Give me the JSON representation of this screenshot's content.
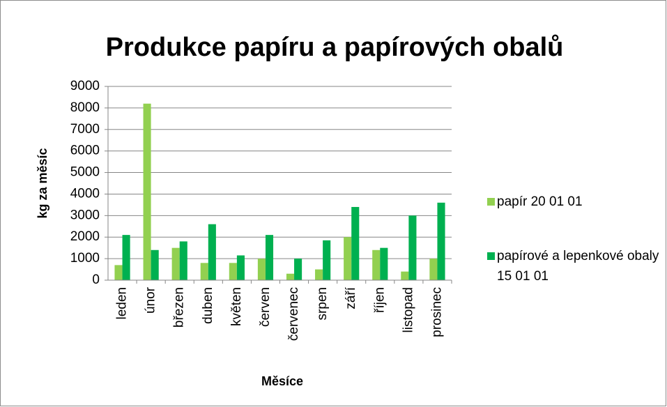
{
  "chart_data": {
    "type": "bar",
    "title": "Produkce papíru a papírových obalů",
    "y_label": "kg za měsíc",
    "x_label": "Měsíce",
    "categories": [
      "leden",
      "únor",
      "březen",
      "duben",
      "květen",
      "červen",
      "červenec",
      "srpen",
      "září",
      "říjen",
      "listopad",
      "prosinec"
    ],
    "series": [
      {
        "name": "papír 20 01 01",
        "color": "#92d050",
        "values": [
          700,
          8200,
          1500,
          800,
          800,
          1000,
          300,
          500,
          2000,
          1400,
          400,
          1000
        ]
      },
      {
        "name": "papírové a lepenkové obaly 15 01 01",
        "color": "#00b050",
        "values": [
          2100,
          1400,
          1800,
          2600,
          1150,
          2100,
          1000,
          1850,
          3400,
          1500,
          3000,
          3600
        ]
      }
    ],
    "ylim": [
      0,
      9000
    ],
    "yticks": [
      0,
      1000,
      2000,
      3000,
      4000,
      5000,
      6000,
      7000,
      8000,
      9000
    ],
    "grid": true,
    "legend": "right"
  }
}
